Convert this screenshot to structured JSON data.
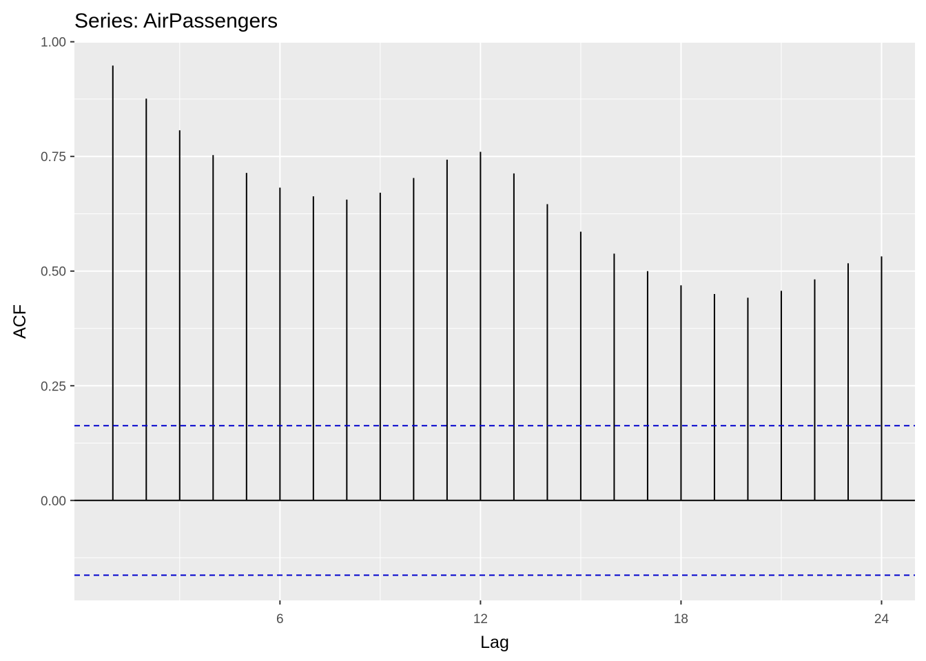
{
  "chart_data": {
    "type": "bar",
    "title": "Series: AirPassengers",
    "xlabel": "Lag",
    "ylabel": "ACF",
    "x": [
      1,
      2,
      3,
      4,
      5,
      6,
      7,
      8,
      9,
      10,
      11,
      12,
      13,
      14,
      15,
      16,
      17,
      18,
      19,
      20,
      21,
      22,
      23,
      24
    ],
    "values": [
      0.948,
      0.876,
      0.807,
      0.753,
      0.714,
      0.682,
      0.663,
      0.656,
      0.671,
      0.703,
      0.743,
      0.76,
      0.713,
      0.646,
      0.586,
      0.538,
      0.5,
      0.469,
      0.45,
      0.442,
      0.457,
      0.482,
      0.517,
      0.532
    ],
    "ci_upper": 0.163,
    "ci_lower": -0.163,
    "xlim": [
      -0.15,
      25.0
    ],
    "ylim": [
      -0.218,
      0.998
    ],
    "x_ticks": [
      6,
      12,
      18,
      24
    ],
    "x_tick_labels": [
      "6",
      "12",
      "18",
      "24"
    ],
    "y_ticks": [
      0.0,
      0.25,
      0.5,
      0.75,
      1.0
    ],
    "y_tick_labels": [
      "0.00",
      "0.25",
      "0.50",
      "0.75",
      "1.00"
    ],
    "grid": true,
    "colors": {
      "panel": "#ebebeb",
      "grid": "#ffffff",
      "bars": "#000000",
      "ci": "#0000cc"
    }
  }
}
